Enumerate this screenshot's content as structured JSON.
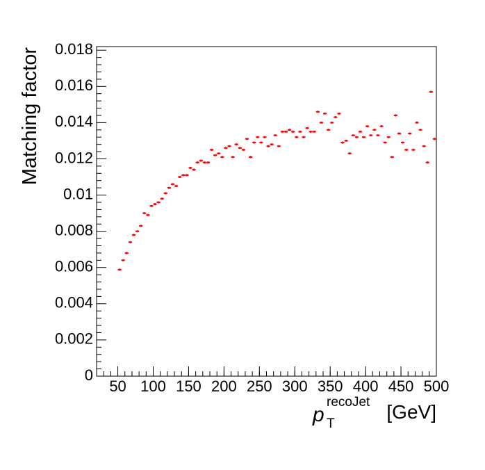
{
  "chart_data": {
    "type": "errorbar",
    "ylabel": "Matching factor",
    "xlabel": {
      "symbol": "p",
      "subscript": "T",
      "superscript": "recoJet",
      "unit": "[GeV]"
    },
    "color": "#ff0000",
    "xlim": [
      20,
      500
    ],
    "ylim": [
      0,
      0.0182
    ],
    "xticks": [
      50,
      100,
      150,
      200,
      250,
      300,
      350,
      400,
      450,
      500
    ],
    "yticks": [
      0,
      0.002,
      0.004,
      0.006,
      0.008,
      0.01,
      0.012,
      0.014,
      0.016,
      0.018
    ],
    "bin_width": 5,
    "x": [
      52.5,
      57.5,
      62.5,
      67.5,
      72.5,
      77.5,
      82.5,
      87.5,
      92.5,
      97.5,
      102.5,
      107.5,
      112.5,
      117.5,
      122.5,
      127.5,
      132.5,
      137.5,
      142.5,
      147.5,
      152.5,
      157.5,
      162.5,
      167.5,
      172.5,
      177.5,
      182.5,
      187.5,
      192.5,
      197.5,
      202.5,
      207.5,
      212.5,
      217.5,
      222.5,
      227.5,
      232.5,
      237.5,
      242.5,
      247.5,
      252.5,
      257.5,
      262.5,
      267.5,
      272.5,
      277.5,
      282.5,
      287.5,
      292.5,
      297.5,
      302.5,
      307.5,
      312.5,
      317.5,
      322.5,
      327.5,
      332.5,
      337.5,
      342.5,
      347.5,
      352.5,
      357.5,
      362.5,
      367.5,
      372.5,
      377.5,
      382.5,
      387.5,
      392.5,
      397.5,
      402.5,
      407.5,
      412.5,
      417.5,
      422.5,
      427.5,
      432.5,
      437.5,
      442.5,
      447.5,
      452.5,
      457.5,
      462.5,
      467.5,
      472.5,
      477.5,
      482.5,
      487.5,
      492.5,
      497.5
    ],
    "values": [
      0.00588,
      0.0064,
      0.0068,
      0.0074,
      0.0078,
      0.008,
      0.0083,
      0.009,
      0.0089,
      0.0094,
      0.0095,
      0.0096,
      0.0098,
      0.0101,
      0.0104,
      0.0106,
      0.0105,
      0.011,
      0.0111,
      0.0111,
      0.0115,
      0.0114,
      0.0118,
      0.0119,
      0.0118,
      0.0118,
      0.0125,
      0.0122,
      0.0123,
      0.0121,
      0.0126,
      0.0127,
      0.0121,
      0.0128,
      0.0126,
      0.0125,
      0.0131,
      0.0121,
      0.0129,
      0.0132,
      0.0129,
      0.0132,
      0.0127,
      0.0128,
      0.0133,
      0.0127,
      0.0135,
      0.0135,
      0.0136,
      0.0135,
      0.0132,
      0.0135,
      0.0132,
      0.0137,
      0.0135,
      0.0135,
      0.0146,
      0.014,
      0.0145,
      0.0136,
      0.014,
      0.0143,
      0.0145,
      0.0129,
      0.013,
      0.0123,
      0.0133,
      0.0132,
      0.0135,
      0.0132,
      0.0138,
      0.0133,
      0.0136,
      0.0133,
      0.0138,
      0.0129,
      0.0132,
      0.0121,
      0.0144,
      0.0134,
      0.0129,
      0.0125,
      0.0134,
      0.0125,
      0.014,
      0.0136,
      0.0127,
      0.0118,
      0.0157,
      0.0131
    ],
    "errors": [
      6e-05,
      6e-05,
      7e-05,
      7e-05,
      8e-05,
      8e-05,
      9e-05,
      0.0001,
      0.0001,
      0.0001,
      0.0001,
      0.00011,
      0.00012,
      0.00013,
      0.00014,
      0.00015,
      0.00016,
      0.00017,
      0.00018,
      0.00019,
      0.0002,
      0.00021,
      0.00022,
      0.00023,
      0.00024,
      0.00025,
      0.00026,
      0.00027,
      0.00028,
      0.0003,
      0.0003,
      0.00031,
      0.00032,
      0.00033,
      0.00035,
      0.00036,
      0.00037,
      0.00039,
      0.0004,
      0.00041,
      0.00042,
      0.00044,
      0.00045,
      0.00047,
      0.00048,
      0.0005,
      0.00051,
      0.00053,
      0.00054,
      0.00056,
      0.00057,
      0.00059,
      0.0006,
      0.00062,
      0.00064,
      0.00065,
      0.00067,
      0.00069,
      0.0007,
      0.00072,
      0.00074,
      0.00076,
      0.00078,
      0.0008,
      0.00082,
      0.00084,
      0.00086,
      0.00088,
      0.0009,
      0.00092,
      0.00094,
      0.00096,
      0.00098,
      0.001,
      0.00102,
      0.00105,
      0.00107,
      0.00109,
      0.00112,
      0.00114,
      0.00117,
      0.0012,
      0.00122,
      0.00125,
      0.00128,
      0.0013,
      0.00133,
      0.00136,
      0.0017,
      0.0013
    ]
  }
}
